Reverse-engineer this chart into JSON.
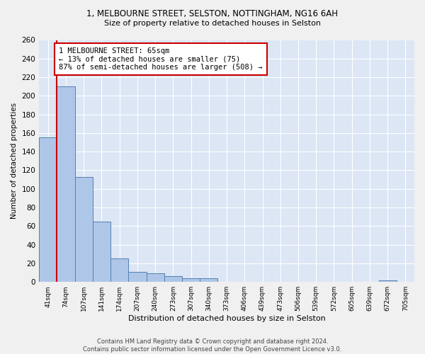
{
  "title1": "1, MELBOURNE STREET, SELSTON, NOTTINGHAM, NG16 6AH",
  "title2": "Size of property relative to detached houses in Selston",
  "xlabel": "Distribution of detached houses by size in Selston",
  "ylabel": "Number of detached properties",
  "categories": [
    "41sqm",
    "74sqm",
    "107sqm",
    "141sqm",
    "174sqm",
    "207sqm",
    "240sqm",
    "273sqm",
    "307sqm",
    "340sqm",
    "373sqm",
    "406sqm",
    "439sqm",
    "473sqm",
    "506sqm",
    "539sqm",
    "572sqm",
    "605sqm",
    "639sqm",
    "672sqm",
    "705sqm"
  ],
  "values": [
    155,
    210,
    113,
    65,
    25,
    11,
    9,
    6,
    4,
    4,
    0,
    0,
    0,
    0,
    0,
    0,
    0,
    0,
    0,
    2,
    0
  ],
  "bar_color": "#aec6e8",
  "bar_edge_color": "#5580b0",
  "subject_line_color": "#cc0000",
  "annotation_text": "1 MELBOURNE STREET: 65sqm\n← 13% of detached houses are smaller (75)\n87% of semi-detached houses are larger (508) →",
  "annotation_box_color": "#ffffff",
  "annotation_box_edge": "#cc0000",
  "footer_text": "Contains HM Land Registry data © Crown copyright and database right 2024.\nContains public sector information licensed under the Open Government Licence v3.0.",
  "background_color": "#dce6f5",
  "fig_background": "#f0f0f0",
  "ylim": [
    0,
    260
  ],
  "yticks": [
    0,
    20,
    40,
    60,
    80,
    100,
    120,
    140,
    160,
    180,
    200,
    220,
    240,
    260
  ]
}
